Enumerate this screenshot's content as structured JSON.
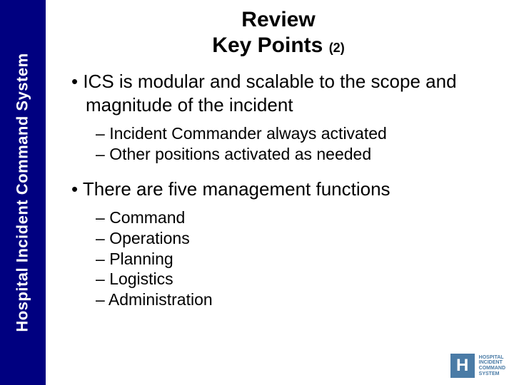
{
  "sidebar": {
    "label": "Hospital Incident Command System"
  },
  "title": {
    "line1": "Review",
    "line2": "Key Points",
    "suffix": "(2)"
  },
  "bullets": {
    "b1": "ICS is modular and scalable to the scope and magnitude of the incident",
    "b1_sub": [
      "Incident Commander always activated",
      "Other positions activated as needed"
    ],
    "b2": "There are five management functions",
    "b2_sub": [
      "Command",
      "Operations",
      "Planning",
      "Logistics",
      "Administration"
    ]
  },
  "logo": {
    "h": "H",
    "line1": "HOSPITAL",
    "line2": "INCIDENT",
    "line3": "COMMAND",
    "line4": "SYSTEM"
  },
  "colors": {
    "sidebar_bg": "#000080",
    "sidebar_text": "#ffffff",
    "text": "#000000",
    "logo": "#4a7ba6",
    "background": "#ffffff"
  }
}
